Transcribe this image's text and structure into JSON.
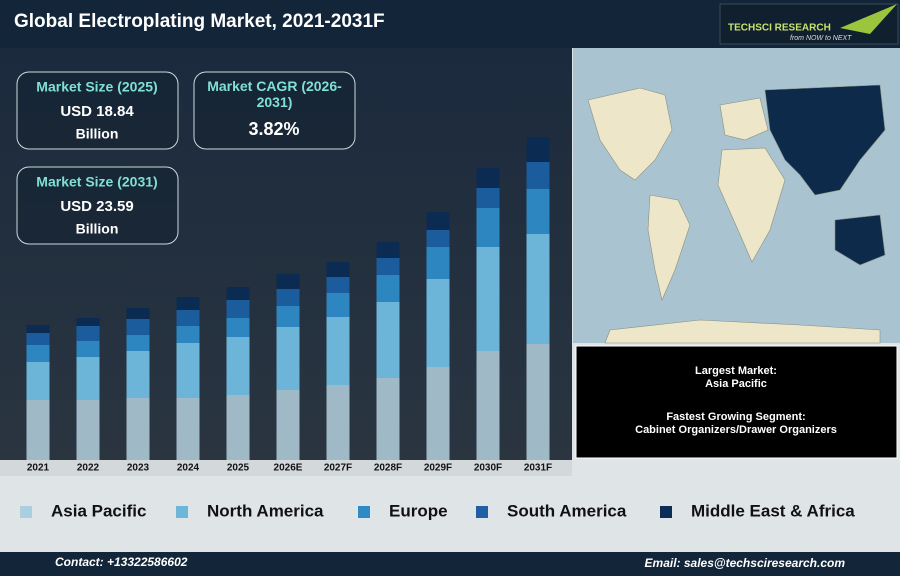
{
  "header": {
    "title": "Global Electroplating Market, 2021-2031F",
    "brand": "TECHSCI RESEARCH",
    "tagline": "from NOW to NEXT"
  },
  "kpis": [
    {
      "label": "Market Size (2025)",
      "value": "USD 18.84",
      "unit": "Billion"
    },
    {
      "label": "Market CAGR (2026-2031)",
      "value": "3.82%"
    },
    {
      "label": "Market Size (2031)",
      "value": "USD 23.59",
      "unit": "Billion"
    }
  ],
  "chart_data": {
    "type": "bar",
    "stacked": true,
    "categories": [
      "2021",
      "2022",
      "2023",
      "2024",
      "2025",
      "2026E",
      "2027F",
      "2028F",
      "2029F",
      "2030F",
      "2031F"
    ],
    "series": [
      {
        "name": "Asia Pacific",
        "color": "#9fb9c6",
        "legend_color": "#a9cfe0",
        "values": [
          60,
          60,
          62,
          62,
          65,
          70,
          75,
          82,
          93,
          109,
          116
        ]
      },
      {
        "name": "North America",
        "color": "#6db5d8",
        "legend_color": "#6cb7d9",
        "values": [
          38,
          43,
          47,
          55,
          58,
          63,
          68,
          76,
          88,
          104,
          110
        ]
      },
      {
        "name": "Europe",
        "color": "#2e86c0",
        "legend_color": "#2d8ac3",
        "values": [
          17,
          16,
          16,
          17,
          19,
          21,
          24,
          27,
          32,
          39,
          45
        ]
      },
      {
        "name": "South America",
        "color": "#1b5c9c",
        "legend_color": "#1f5fa5",
        "values": [
          12,
          15,
          16,
          16,
          18,
          17,
          16,
          17,
          17,
          20,
          27
        ]
      },
      {
        "name": "Middle East & Africa",
        "color": "#0c2b52",
        "legend_color": "#0c2d57",
        "values": [
          8,
          8,
          11,
          13,
          13,
          15,
          15,
          16,
          18,
          20,
          25
        ]
      }
    ]
  },
  "info": {
    "largest_label": "Largest Market:",
    "largest_value": "Asia Pacific",
    "fastest_label": "Fastest Growing Segment:",
    "fastest_value": "Cabinet Organizers/Drawer Organizers"
  },
  "footer": {
    "contact": "Contact: +13322586602",
    "email": "Email: sales@techsciresearch.com"
  }
}
